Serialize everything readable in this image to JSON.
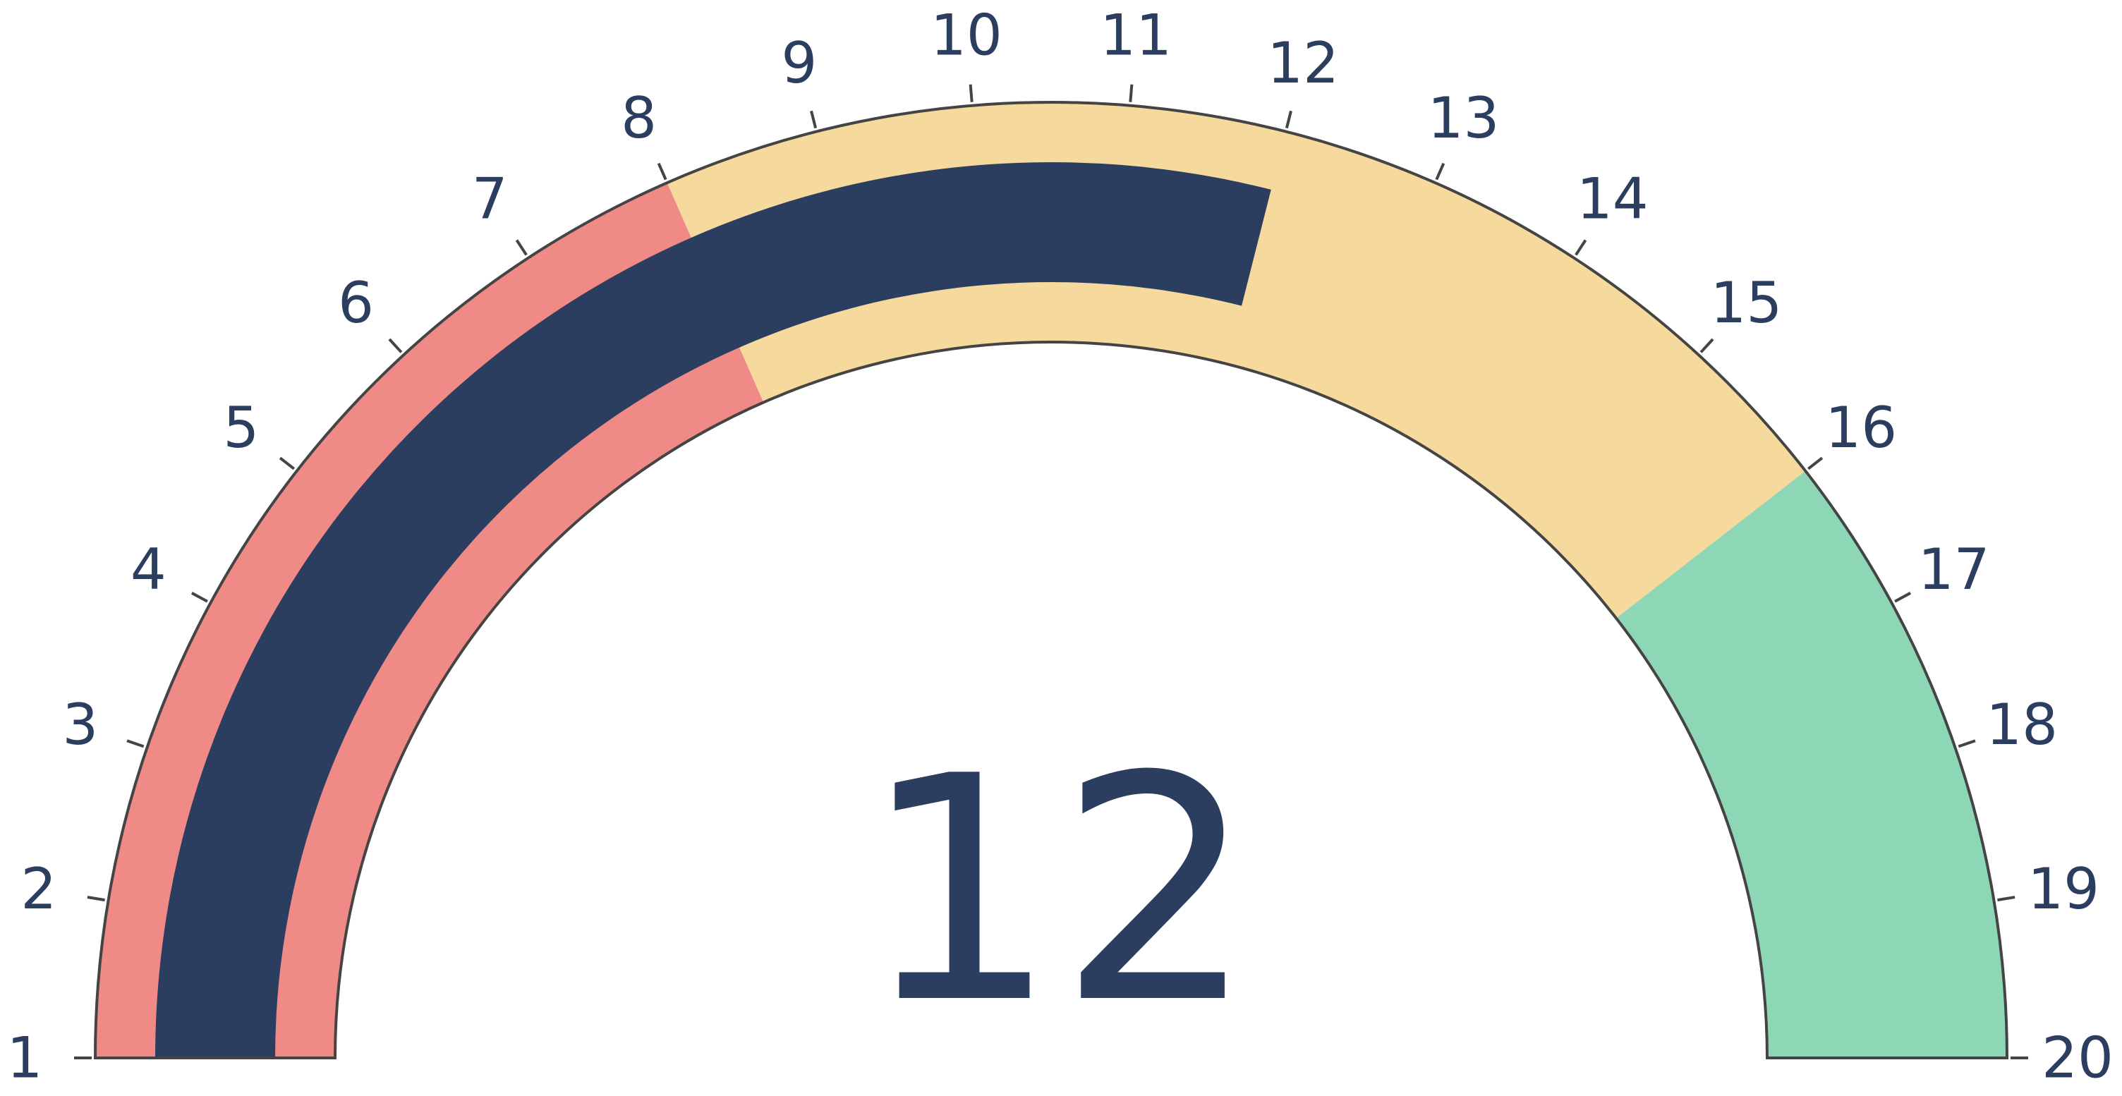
{
  "chart_data": {
    "type": "gauge",
    "value": 12,
    "value_label": "12",
    "range": [
      1,
      20
    ],
    "tick_labels": [
      "1",
      "2",
      "3",
      "4",
      "5",
      "6",
      "7",
      "8",
      "9",
      "10",
      "11",
      "12",
      "13",
      "14",
      "15",
      "16",
      "17",
      "18",
      "19",
      "20"
    ],
    "steps": [
      {
        "range": [
          1,
          8
        ],
        "color": "#ef8a87"
      },
      {
        "range": [
          8,
          16
        ],
        "color": "#f5d99d"
      },
      {
        "range": [
          16,
          20
        ],
        "color": "#8dd6b6"
      }
    ],
    "bar_color": "#2c3e5f",
    "text_color": "#2c3e5f",
    "outline_color": "#444444"
  }
}
